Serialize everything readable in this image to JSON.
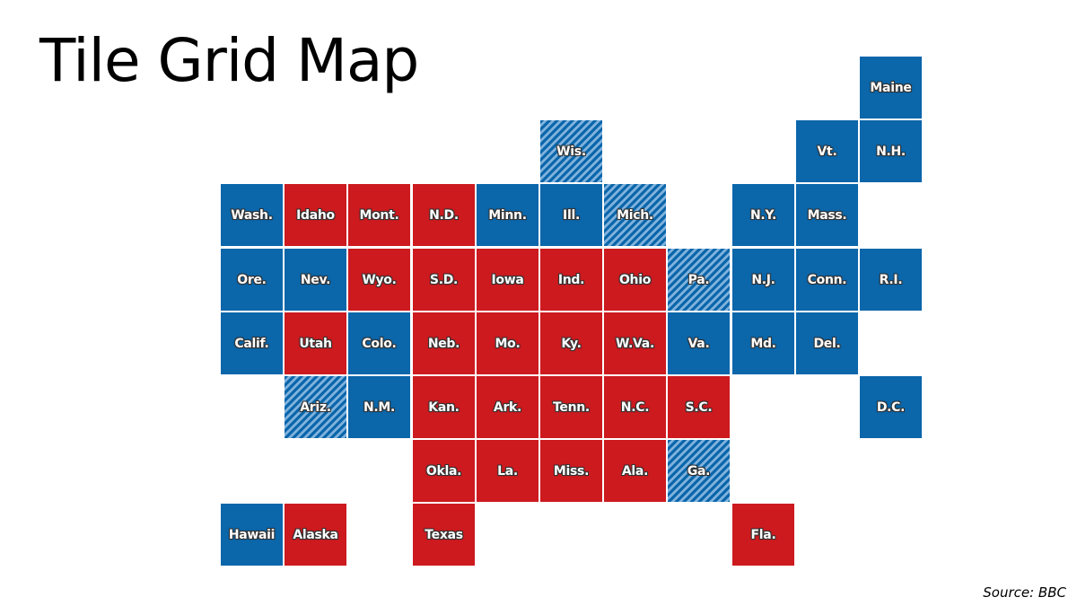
{
  "title": "Tile Grid Map",
  "source": "Source: BBC",
  "colors": {
    "blue": "#0b66aa",
    "red": "#cc1a1f",
    "hatched": "striped blue"
  },
  "map_data": {
    "grid": {
      "columns": 11,
      "rows": 8
    },
    "states": [
      {
        "label": "Maine",
        "col": 10,
        "row": 0,
        "fill": "blue"
      },
      {
        "label": "Wis.",
        "col": 5,
        "row": 1,
        "fill": "hatched"
      },
      {
        "label": "Vt.",
        "col": 9,
        "row": 1,
        "fill": "blue"
      },
      {
        "label": "N.H.",
        "col": 10,
        "row": 1,
        "fill": "blue"
      },
      {
        "label": "Wash.",
        "col": 0,
        "row": 2,
        "fill": "blue"
      },
      {
        "label": "Idaho",
        "col": 1,
        "row": 2,
        "fill": "red"
      },
      {
        "label": "Mont.",
        "col": 2,
        "row": 2,
        "fill": "red"
      },
      {
        "label": "N.D.",
        "col": 3,
        "row": 2,
        "fill": "red"
      },
      {
        "label": "Minn.",
        "col": 4,
        "row": 2,
        "fill": "blue"
      },
      {
        "label": "Ill.",
        "col": 5,
        "row": 2,
        "fill": "blue"
      },
      {
        "label": "Mich.",
        "col": 6,
        "row": 2,
        "fill": "hatched"
      },
      {
        "label": "N.Y.",
        "col": 8,
        "row": 2,
        "fill": "blue"
      },
      {
        "label": "Mass.",
        "col": 9,
        "row": 2,
        "fill": "blue"
      },
      {
        "label": "Ore.",
        "col": 0,
        "row": 3,
        "fill": "blue"
      },
      {
        "label": "Nev.",
        "col": 1,
        "row": 3,
        "fill": "blue"
      },
      {
        "label": "Wyo.",
        "col": 2,
        "row": 3,
        "fill": "red"
      },
      {
        "label": "S.D.",
        "col": 3,
        "row": 3,
        "fill": "red"
      },
      {
        "label": "Iowa",
        "col": 4,
        "row": 3,
        "fill": "red"
      },
      {
        "label": "Ind.",
        "col": 5,
        "row": 3,
        "fill": "red"
      },
      {
        "label": "Ohio",
        "col": 6,
        "row": 3,
        "fill": "red"
      },
      {
        "label": "Pa.",
        "col": 7,
        "row": 3,
        "fill": "hatched"
      },
      {
        "label": "N.J.",
        "col": 8,
        "row": 3,
        "fill": "blue"
      },
      {
        "label": "Conn.",
        "col": 9,
        "row": 3,
        "fill": "blue"
      },
      {
        "label": "R.I.",
        "col": 10,
        "row": 3,
        "fill": "blue"
      },
      {
        "label": "Calif.",
        "col": 0,
        "row": 4,
        "fill": "blue"
      },
      {
        "label": "Utah",
        "col": 1,
        "row": 4,
        "fill": "red"
      },
      {
        "label": "Colo.",
        "col": 2,
        "row": 4,
        "fill": "blue"
      },
      {
        "label": "Neb.",
        "col": 3,
        "row": 4,
        "fill": "red"
      },
      {
        "label": "Mo.",
        "col": 4,
        "row": 4,
        "fill": "red"
      },
      {
        "label": "Ky.",
        "col": 5,
        "row": 4,
        "fill": "red"
      },
      {
        "label": "W.Va.",
        "col": 6,
        "row": 4,
        "fill": "red"
      },
      {
        "label": "Va.",
        "col": 7,
        "row": 4,
        "fill": "blue"
      },
      {
        "label": "Md.",
        "col": 8,
        "row": 4,
        "fill": "blue"
      },
      {
        "label": "Del.",
        "col": 9,
        "row": 4,
        "fill": "blue"
      },
      {
        "label": "Ariz.",
        "col": 1,
        "row": 5,
        "fill": "hatched"
      },
      {
        "label": "N.M.",
        "col": 2,
        "row": 5,
        "fill": "blue"
      },
      {
        "label": "Kan.",
        "col": 3,
        "row": 5,
        "fill": "red"
      },
      {
        "label": "Ark.",
        "col": 4,
        "row": 5,
        "fill": "red"
      },
      {
        "label": "Tenn.",
        "col": 5,
        "row": 5,
        "fill": "red"
      },
      {
        "label": "N.C.",
        "col": 6,
        "row": 5,
        "fill": "red"
      },
      {
        "label": "S.C.",
        "col": 7,
        "row": 5,
        "fill": "red"
      },
      {
        "label": "D.C.",
        "col": 10,
        "row": 5,
        "fill": "blue"
      },
      {
        "label": "Okla.",
        "col": 3,
        "row": 6,
        "fill": "red"
      },
      {
        "label": "La.",
        "col": 4,
        "row": 6,
        "fill": "red"
      },
      {
        "label": "Miss.",
        "col": 5,
        "row": 6,
        "fill": "red"
      },
      {
        "label": "Ala.",
        "col": 6,
        "row": 6,
        "fill": "red"
      },
      {
        "label": "Ga.",
        "col": 7,
        "row": 6,
        "fill": "hatched"
      },
      {
        "label": "Hawaii",
        "col": 0,
        "row": 7,
        "fill": "blue"
      },
      {
        "label": "Alaska",
        "col": 1,
        "row": 7,
        "fill": "red"
      },
      {
        "label": "Texas",
        "col": 3,
        "row": 7,
        "fill": "red"
      },
      {
        "label": "Fla.",
        "col": 8,
        "row": 7,
        "fill": "red"
      }
    ]
  }
}
